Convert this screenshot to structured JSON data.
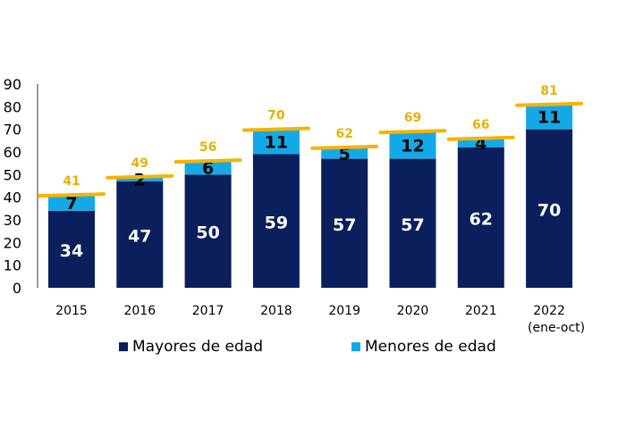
{
  "chart_data": {
    "type": "bar",
    "stacked": true,
    "categories": [
      "2015",
      "2016",
      "2017",
      "2018",
      "2019",
      "2020",
      "2021",
      "2022"
    ],
    "category_sublabels": [
      "",
      "",
      "",
      "",
      "",
      "",
      "",
      "(ene-oct)"
    ],
    "series": [
      {
        "name": "Mayores de edad",
        "values": [
          34,
          47,
          50,
          59,
          57,
          57,
          62,
          70
        ],
        "color": "#0a1f5c"
      },
      {
        "name": "Menores de edad",
        "values": [
          7,
          2,
          6,
          11,
          5,
          12,
          4,
          11
        ],
        "color": "#14a9e6"
      }
    ],
    "totals": [
      41,
      49,
      56,
      70,
      62,
      69,
      66,
      81
    ],
    "total_marker_color": "#f5b400",
    "total_label_color": "#e8b007",
    "ylim": [
      0,
      90
    ],
    "yticks": [
      0,
      10,
      20,
      30,
      40,
      50,
      60,
      70,
      80,
      90
    ],
    "grid": false,
    "legend_position": "bottom"
  }
}
